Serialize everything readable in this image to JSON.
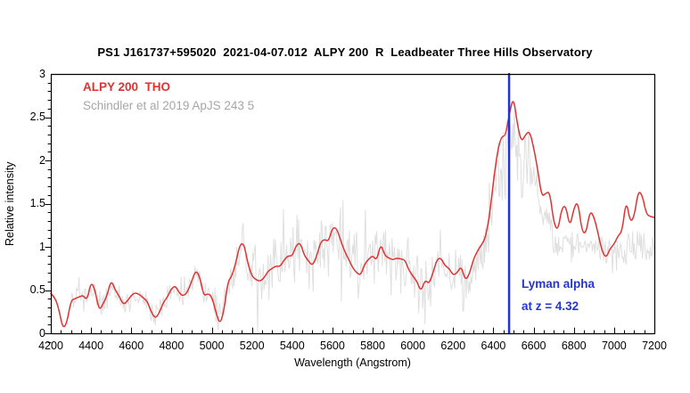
{
  "header": {
    "title": "PS1 J161737+595020  2021-04-07.012  ALPY 200  R  Leadbeater Three Hills Observatory"
  },
  "chart_data": {
    "type": "line",
    "title": "PS1 J161737+595020  2021-04-07.012  ALPY 200  R  Leadbeater Three Hills Observatory",
    "xlabel": "Wavelength (Angstrom)",
    "ylabel": "Relative intensity",
    "xlim": [
      4200,
      7200
    ],
    "ylim": [
      0,
      3
    ],
    "x_ticks": [
      4200,
      4400,
      4600,
      4800,
      5000,
      5200,
      5400,
      5600,
      5800,
      6000,
      6200,
      6400,
      6600,
      6800,
      7000,
      7200
    ],
    "x_minor_step": 50,
    "y_ticks": [
      "0",
      "0.5",
      "1",
      "1.5",
      "2",
      "2.5",
      "3"
    ],
    "y_tick_values": [
      0,
      0.5,
      1,
      1.5,
      2,
      2.5,
      3
    ],
    "y_minor_step": 0.1,
    "grid": false,
    "legend_position": "top-left-inside",
    "x_start": 4200,
    "x_step": 20,
    "legend": [
      {
        "label": "ALPY 200  THO",
        "color": "#e13232"
      },
      {
        "label": "Schindler et al 2019 ApJS 243 5",
        "color": "#a6a6a6"
      }
    ],
    "series": [
      {
        "name": "ALPY 200 THO (observed, smoothed)",
        "color": "#e13232",
        "line_width": 1.5,
        "values": [
          0.46,
          0.42,
          0.28,
          0.05,
          0.12,
          0.38,
          0.4,
          0.42,
          0.44,
          0.38,
          0.6,
          0.5,
          0.26,
          0.34,
          0.44,
          0.62,
          0.5,
          0.43,
          0.33,
          0.37,
          0.44,
          0.47,
          0.45,
          0.41,
          0.37,
          0.24,
          0.17,
          0.24,
          0.36,
          0.42,
          0.52,
          0.55,
          0.46,
          0.43,
          0.48,
          0.6,
          0.73,
          0.66,
          0.43,
          0.46,
          0.43,
          0.25,
          0.1,
          0.25,
          0.6,
          0.66,
          0.82,
          1.03,
          1.04,
          0.8,
          0.66,
          0.62,
          0.6,
          0.64,
          0.72,
          0.75,
          0.78,
          0.77,
          0.85,
          0.9,
          0.89,
          1.02,
          1.05,
          0.9,
          0.84,
          0.78,
          0.88,
          1.05,
          1.09,
          1.06,
          1.22,
          1.22,
          1.08,
          0.95,
          0.86,
          0.76,
          0.7,
          0.67,
          0.8,
          0.86,
          0.9,
          0.84,
          1.04,
          0.9,
          0.87,
          0.85,
          0.87,
          0.86,
          0.85,
          0.73,
          0.66,
          0.6,
          0.48,
          0.62,
          0.57,
          0.7,
          0.86,
          0.87,
          0.78,
          0.75,
          0.67,
          0.7,
          0.78,
          0.61,
          0.68,
          0.85,
          0.95,
          1.02,
          1.1,
          1.35,
          1.75,
          2.1,
          2.28,
          2.28,
          2.55,
          2.74,
          2.4,
          2.21,
          2.3,
          2.34,
          2.15,
          1.9,
          1.58,
          1.62,
          1.64,
          1.28,
          1.18,
          1.45,
          1.48,
          1.22,
          1.45,
          1.53,
          1.18,
          1.15,
          1.42,
          1.35,
          1.16,
          0.95,
          0.87,
          0.98,
          1.03,
          1.13,
          1.18,
          1.55,
          1.28,
          1.35,
          1.65,
          1.6,
          1.38,
          1.35,
          1.34
        ]
      },
      {
        "name": "Schindler et al 2019 ApJS 243 5 (comparison, noisy)",
        "color": "#dfdfdf",
        "line_width": 1,
        "noise_seed": 42,
        "noise_step": 4,
        "noise_segments": [
          {
            "to": 5000,
            "amp": 0.1
          },
          {
            "to": 5150,
            "amp": 0.16
          },
          {
            "to": 6050,
            "amp": 0.3
          },
          {
            "to": 6350,
            "amp": 0.22
          },
          {
            "to": 6620,
            "amp": 0.28
          },
          {
            "to": 7200,
            "amp": 0.13
          }
        ],
        "values": [
          null,
          null,
          null,
          null,
          null,
          0.35,
          0.38,
          0.4,
          0.42,
          0.38,
          0.5,
          0.45,
          0.3,
          0.35,
          0.42,
          0.55,
          0.47,
          0.42,
          0.34,
          0.37,
          0.43,
          0.45,
          0.44,
          0.4,
          0.36,
          0.26,
          0.2,
          0.26,
          0.36,
          0.41,
          0.5,
          0.52,
          0.45,
          0.43,
          0.47,
          0.57,
          0.68,
          0.62,
          0.44,
          0.45,
          0.42,
          0.28,
          0.15,
          0.28,
          0.55,
          0.62,
          0.78,
          0.95,
          0.96,
          0.78,
          0.66,
          0.62,
          0.61,
          0.64,
          0.7,
          0.73,
          0.76,
          0.76,
          0.82,
          0.86,
          0.86,
          0.96,
          0.98,
          0.88,
          0.82,
          0.78,
          0.86,
          1.0,
          1.03,
          1.01,
          1.13,
          1.13,
          1.02,
          0.92,
          0.84,
          0.76,
          0.71,
          0.69,
          0.79,
          0.84,
          0.87,
          0.82,
          0.97,
          0.87,
          0.85,
          0.83,
          0.85,
          0.84,
          0.83,
          0.73,
          0.67,
          0.62,
          0.52,
          0.62,
          0.58,
          0.68,
          0.81,
          0.82,
          0.75,
          0.72,
          0.66,
          0.68,
          0.74,
          0.62,
          0.66,
          0.8,
          0.88,
          0.95,
          1.02,
          1.22,
          1.55,
          1.85,
          2.0,
          2.0,
          2.2,
          2.3,
          2.05,
          1.9,
          1.95,
          1.95,
          1.8,
          1.6,
          1.35,
          1.3,
          1.25,
          1.1,
          1.02,
          1.05,
          1.05,
          1.0,
          1.02,
          1.03,
          0.98,
          0.97,
          1.0,
          1.0,
          0.98,
          0.95,
          0.93,
          0.96,
          0.97,
          0.98,
          0.98,
          1.02,
          0.99,
          1.0,
          1.02,
          1.01,
          0.99,
          0.98,
          0.97
        ]
      }
    ],
    "annotations": {
      "vline": {
        "x": 6478,
        "color": "#2230dd",
        "width": 2.5
      },
      "label_line1": "Lyman alpha",
      "label_line2": "at z = 4.32",
      "label_color": "#2336d4"
    }
  }
}
